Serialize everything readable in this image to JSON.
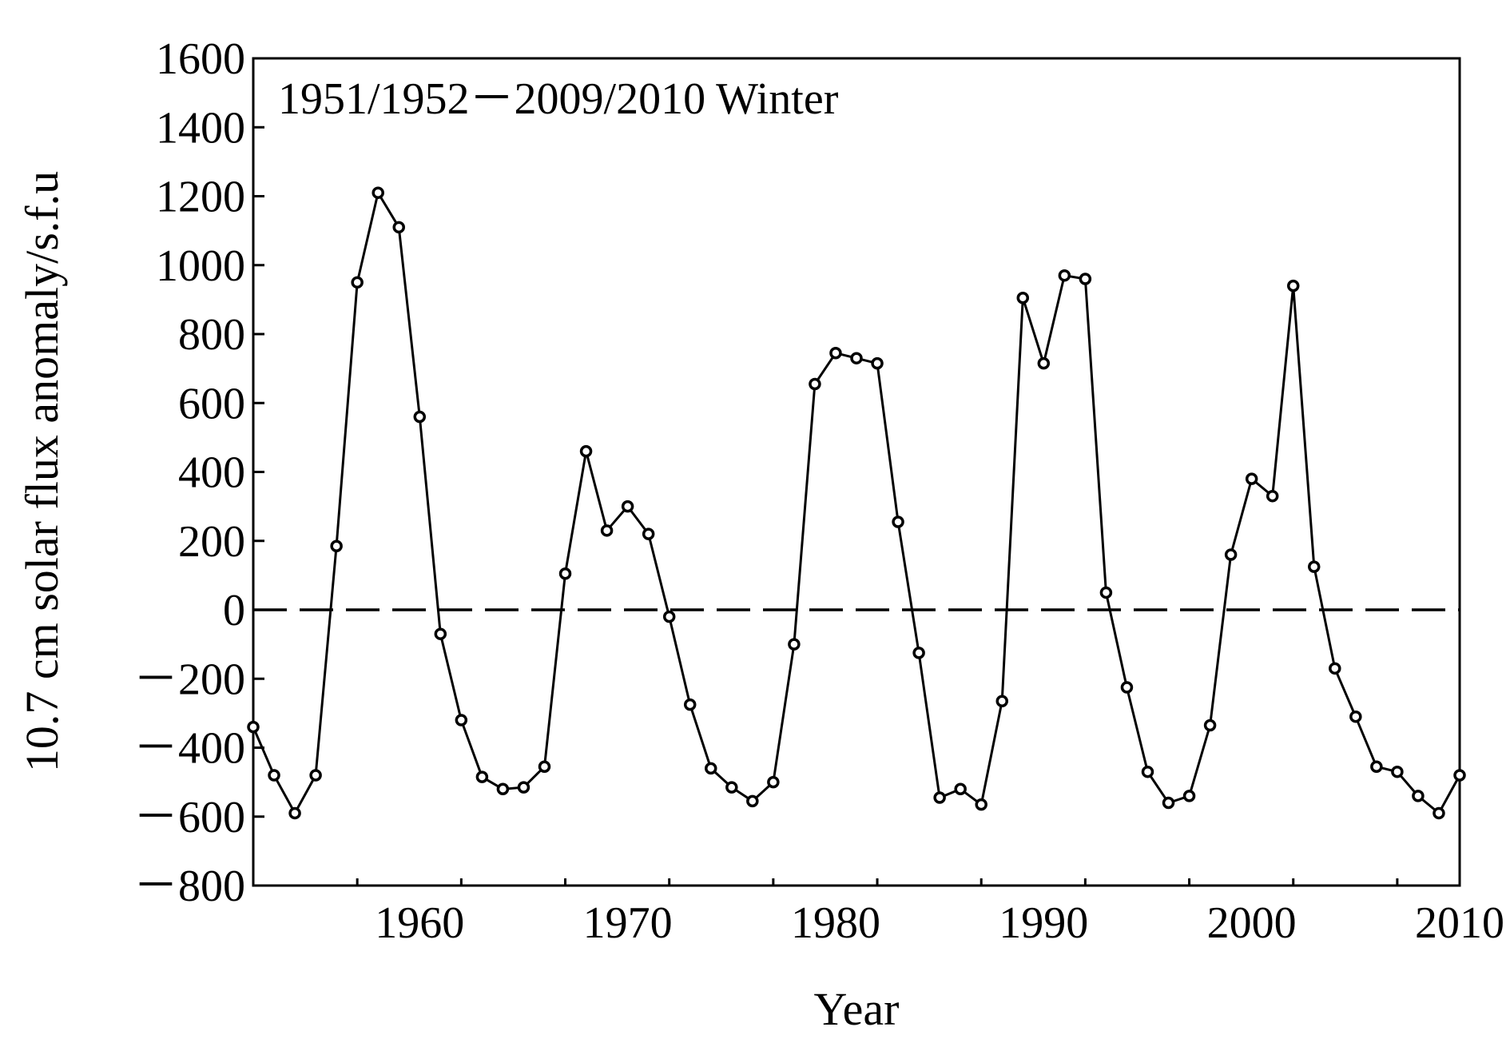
{
  "chart_data": {
    "type": "line",
    "annotation": "1951/1952－2009/2010 Winter",
    "xlabel": "Year",
    "ylabel": "10.7 cm solar flux anomaly/s.f.u",
    "xlim": [
      1952,
      2010
    ],
    "ylim": [
      -800,
      1600
    ],
    "x_ticks": [
      1960,
      1970,
      1980,
      1990,
      2000,
      2010
    ],
    "x_tick_labels": [
      "1960",
      "1970",
      "1980",
      "1990",
      "2000",
      "2010"
    ],
    "y_ticks": [
      1600,
      1400,
      1200,
      1000,
      800,
      600,
      400,
      200,
      0,
      -200,
      -400,
      -600,
      -800
    ],
    "y_tick_labels": [
      "1600",
      "1400",
      "1200",
      "1000",
      "800",
      "600",
      "400",
      "200",
      "0",
      "－200",
      "－400",
      "－600",
      "－800"
    ],
    "grid": false,
    "reference_line": {
      "y": 0,
      "style": "dashed"
    },
    "series": [
      {
        "marker": "open-circle",
        "color": "#000000",
        "x": [
          1952,
          1953,
          1954,
          1955,
          1956,
          1957,
          1958,
          1959,
          1960,
          1961,
          1962,
          1963,
          1964,
          1965,
          1966,
          1967,
          1968,
          1969,
          1970,
          1971,
          1972,
          1973,
          1974,
          1975,
          1976,
          1977,
          1978,
          1979,
          1980,
          1981,
          1982,
          1983,
          1984,
          1985,
          1986,
          1987,
          1988,
          1989,
          1990,
          1991,
          1992,
          1993,
          1994,
          1995,
          1996,
          1997,
          1998,
          1999,
          2000,
          2001,
          2002,
          2003,
          2004,
          2005,
          2006,
          2007,
          2008,
          2009,
          2010
        ],
        "y": [
          -340,
          -480,
          -590,
          -480,
          185,
          950,
          1210,
          1110,
          560,
          -70,
          -320,
          -485,
          -520,
          -515,
          -455,
          105,
          460,
          230,
          300,
          220,
          -20,
          -275,
          -460,
          -515,
          -555,
          -500,
          -100,
          655,
          745,
          730,
          715,
          255,
          -125,
          -545,
          -520,
          -565,
          -265,
          905,
          715,
          970,
          960,
          50,
          -225,
          -470,
          -560,
          -540,
          -335,
          160,
          380,
          330,
          940,
          125,
          -170,
          -310,
          -455,
          -470,
          -540,
          -590,
          -480
        ]
      }
    ]
  }
}
